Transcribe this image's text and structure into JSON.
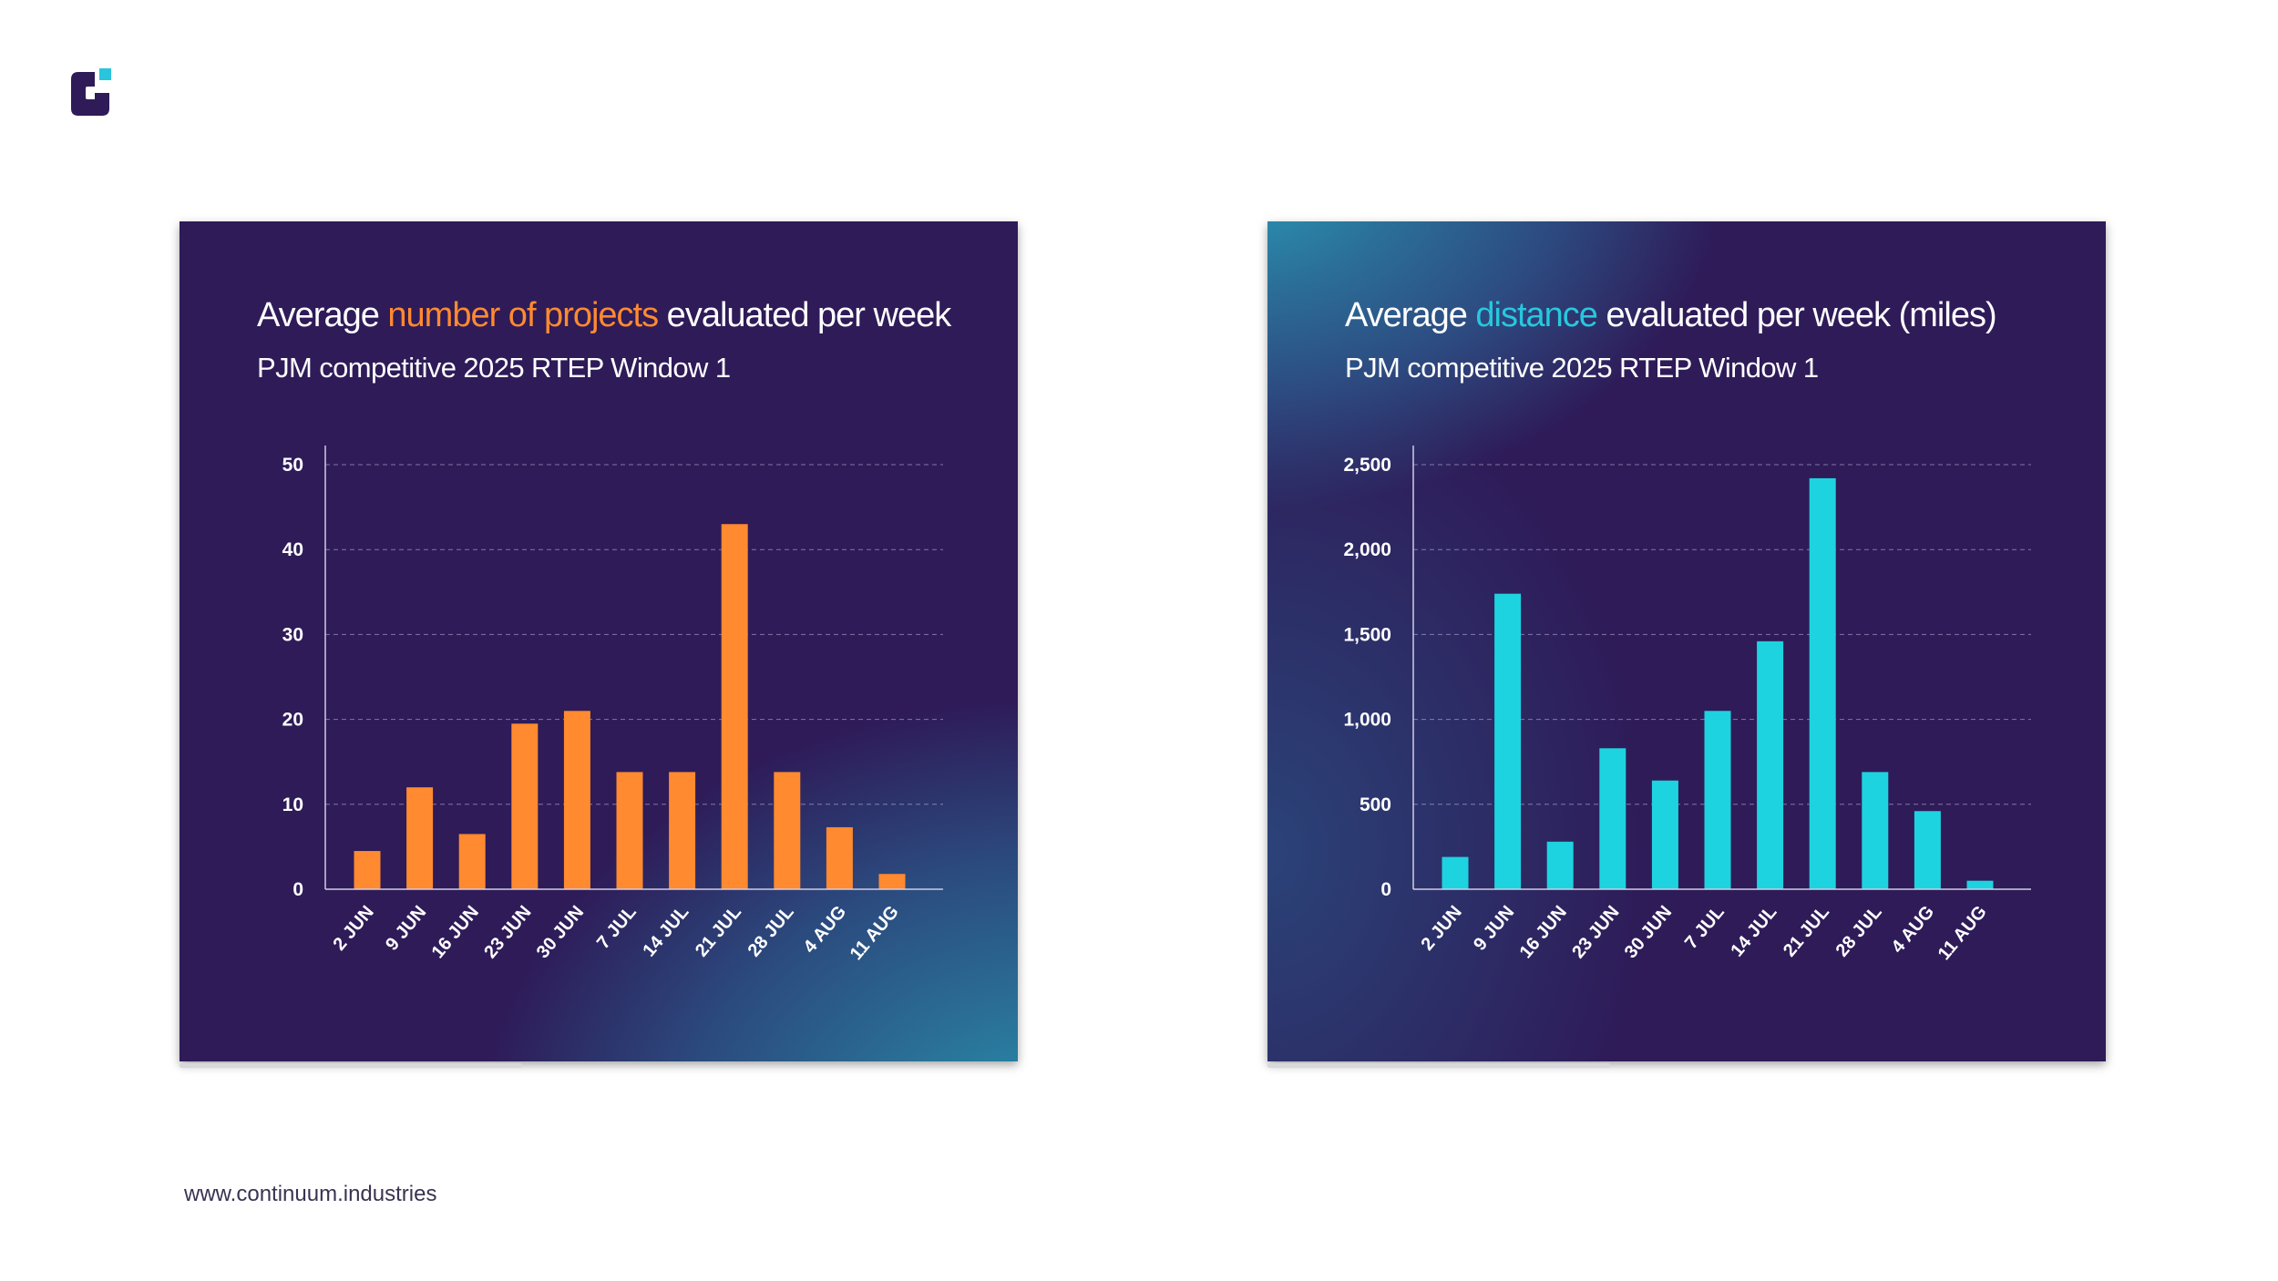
{
  "brand": {
    "logo_icon": "continuum-logo-icon",
    "dark_color": "#2e1b58",
    "accent_color": "#28c5dc"
  },
  "footer": {
    "url": "www.continuum.industries"
  },
  "charts": {
    "left": {
      "title_prefix": "Average ",
      "title_highlight": "number of projects",
      "title_suffix": " evaluated per week",
      "subtitle": "PJM competitive 2025 RTEP Window 1",
      "highlight_color": "#ff8a30"
    },
    "right": {
      "title_prefix": "Average ",
      "title_highlight": "distance",
      "title_suffix": " evaluated per week",
      "title_unit": " (miles)",
      "subtitle": "PJM competitive 2025 RTEP Window 1",
      "highlight_color": "#27c8dd"
    }
  },
  "chart_data": [
    {
      "type": "bar",
      "title": "Average number of projects evaluated per week",
      "subtitle": "PJM competitive 2025 RTEP Window 1",
      "xlabel": "",
      "ylabel": "",
      "categories": [
        "2 JUN",
        "9 JUN",
        "16 JUN",
        "23 JUN",
        "30 JUN",
        "7 JUL",
        "14 JUL",
        "21 JUL",
        "28 JUL",
        "4 AUG",
        "11 AUG"
      ],
      "values": [
        4.5,
        12,
        6.5,
        19.5,
        21,
        13.8,
        13.8,
        43,
        13.8,
        7.3,
        1.8
      ],
      "ylim": [
        0,
        50
      ],
      "yticks": [
        0,
        10,
        20,
        30,
        40,
        50
      ],
      "ytick_labels": [
        "0",
        "10",
        "20",
        "30",
        "40",
        "50"
      ],
      "bar_color": "#ff8a30",
      "grid": true
    },
    {
      "type": "bar",
      "title": "Average distance evaluated per week (miles)",
      "subtitle": "PJM competitive 2025 RTEP Window 1",
      "xlabel": "",
      "ylabel": "",
      "categories": [
        "2 JUN",
        "9 JUN",
        "16 JUN",
        "23 JUN",
        "30 JUN",
        "7 JUL",
        "14 JUL",
        "21 JUL",
        "28 JUL",
        "4 AUG",
        "11 AUG"
      ],
      "values": [
        190,
        1740,
        280,
        830,
        640,
        1050,
        1460,
        2420,
        690,
        460,
        50
      ],
      "ylim": [
        0,
        2500
      ],
      "yticks": [
        0,
        500,
        1000,
        1500,
        2000,
        2500
      ],
      "ytick_labels": [
        "0",
        "500",
        "1,000",
        "1,500",
        "2,000",
        "2,500"
      ],
      "bar_color": "#1ed3e0",
      "grid": true
    }
  ]
}
